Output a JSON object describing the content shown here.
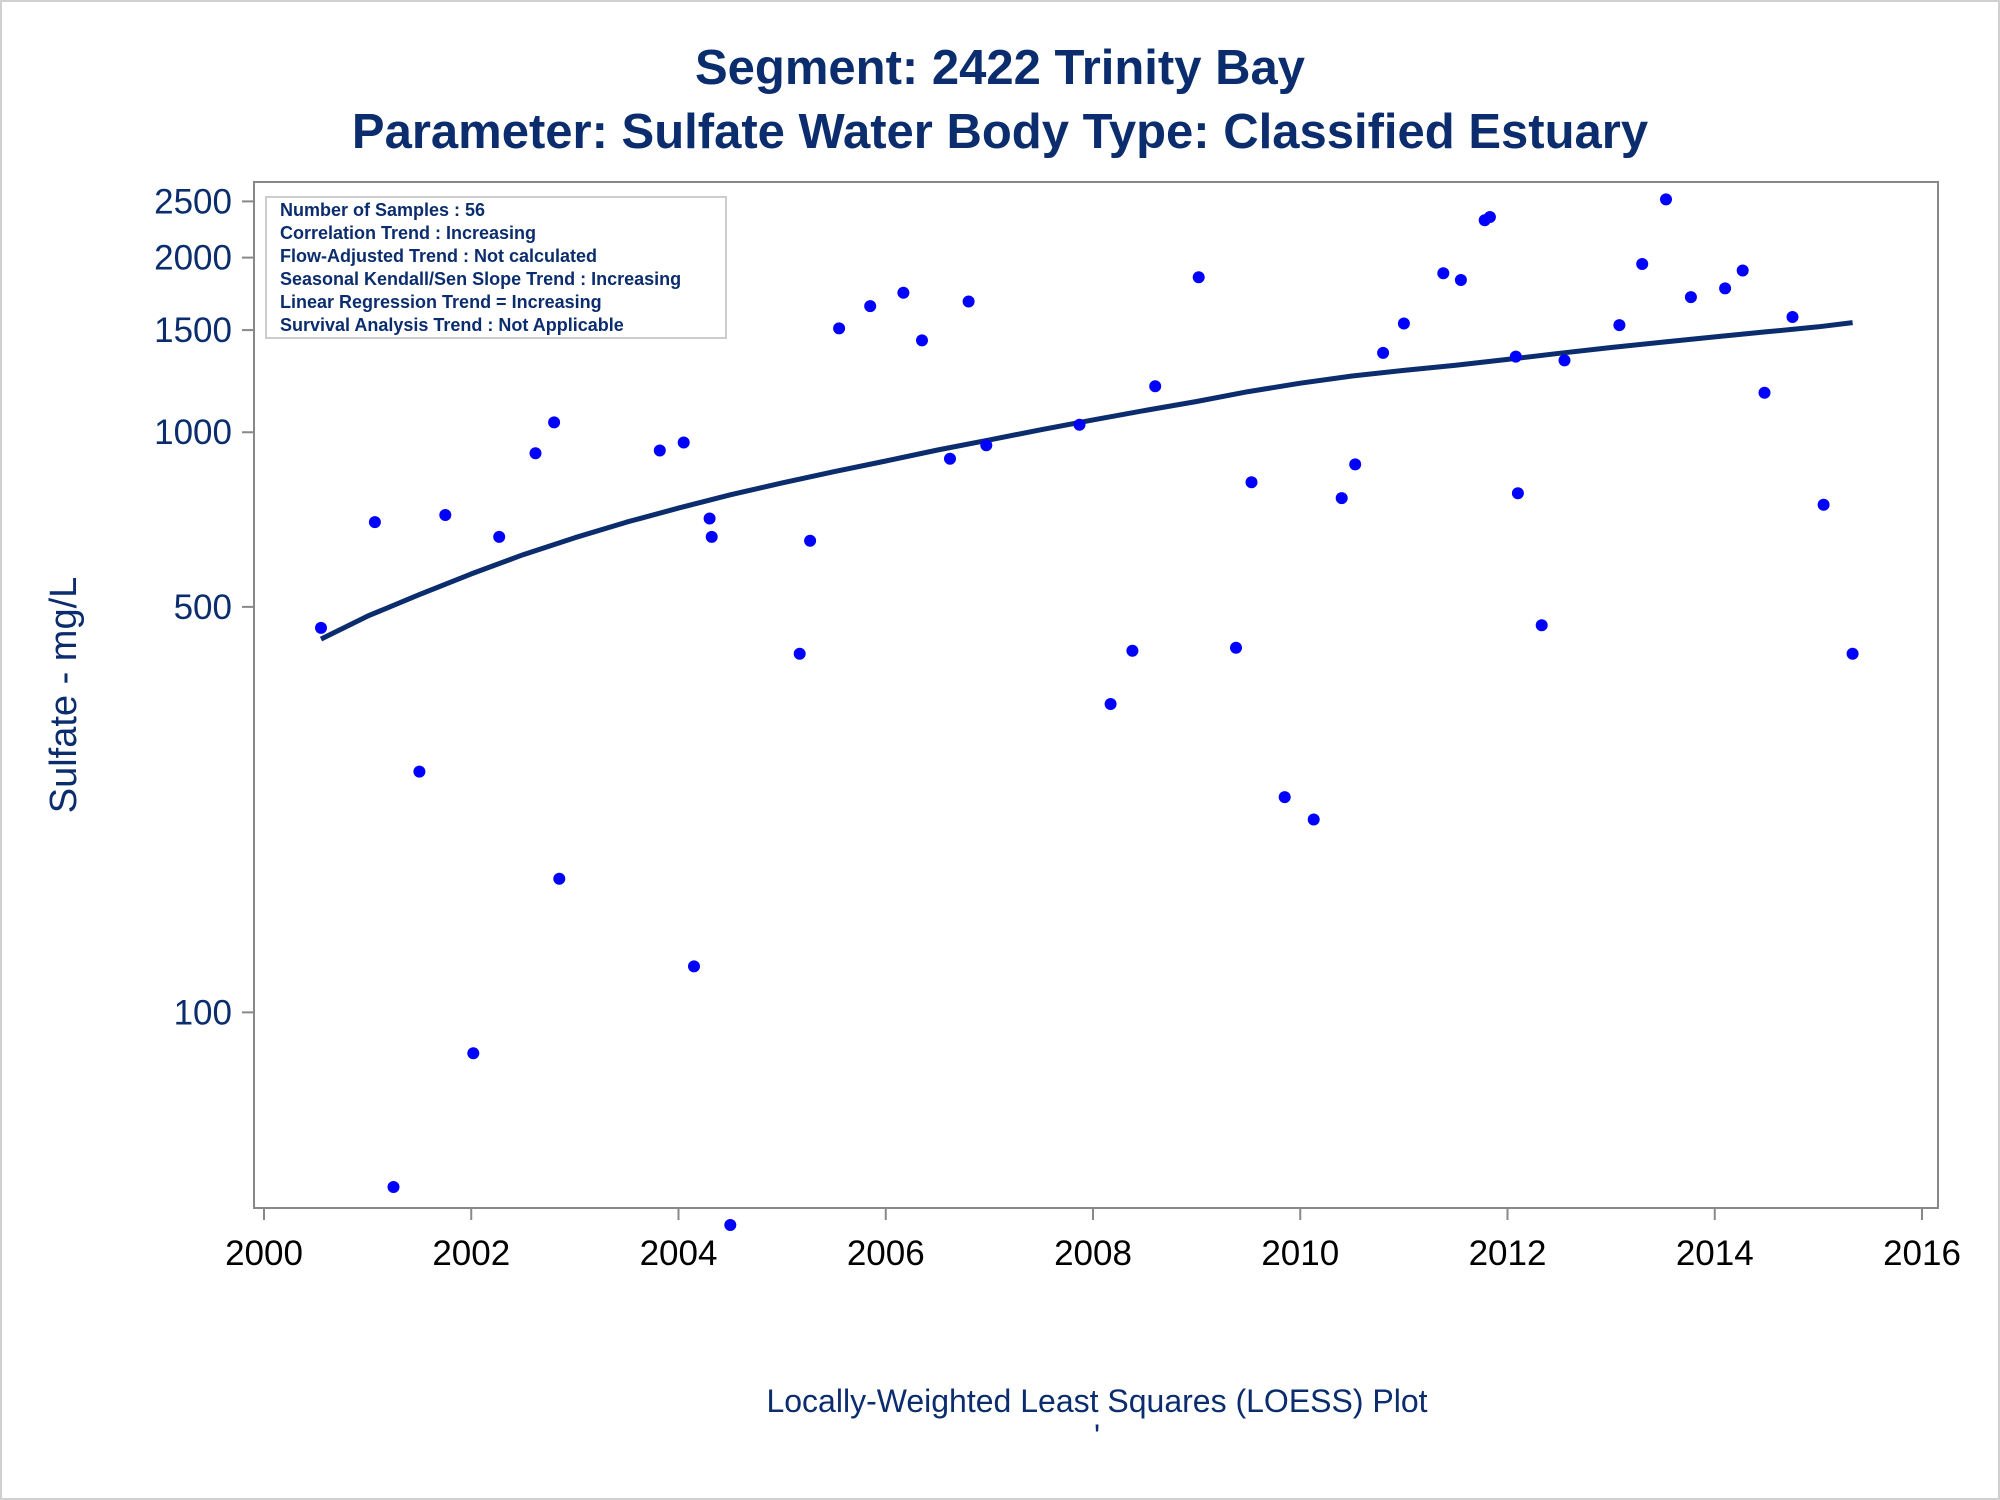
{
  "chart_data": {
    "type": "scatter",
    "title": "Segment: 2422  Trinity Bay",
    "subtitle": "Parameter: Sulfate   Water Body Type: Classified Estuary",
    "xlabel": "",
    "ylabel": "Sulfate - mg/L",
    "footnote": "Locally-Weighted Least Squares (LOESS) Plot",
    "footnote_mark": "'",
    "y_scale": "log",
    "xlim": [
      2000,
      2016
    ],
    "ylim": [
      46,
      2700
    ],
    "x_ticks": [
      2000,
      2002,
      2004,
      2006,
      2008,
      2010,
      2012,
      2014,
      2016
    ],
    "x_tick_labels": [
      "2000",
      "2002",
      "2004",
      "2006",
      "2008",
      "2010",
      "2012",
      "2014",
      "2016"
    ],
    "y_ticks": [
      100,
      500,
      1000,
      1500,
      2000,
      2500
    ],
    "y_tick_labels": [
      "100",
      "500",
      "1000",
      "1500",
      "2000",
      "2500"
    ],
    "grid": false,
    "colors": {
      "points": "#0000ff",
      "line": "#0b2d6e",
      "text": "#0b2d6e",
      "axis": "#888888"
    },
    "stats_box": {
      "position": "top-left",
      "lines": [
        "Number of Samples : 56",
        "Correlation Trend : Increasing",
        "Flow-Adjusted Trend : Not calculated",
        "Seasonal Kendall/Sen Slope Trend : Increasing",
        "Linear Regression Trend = Increasing",
        "Survival Analysis Trend : Not Applicable"
      ]
    },
    "series": [
      {
        "kind": "points",
        "x": [
          2000.55,
          2001.07,
          2001.25,
          2001.5,
          2001.75,
          2002.02,
          2002.27,
          2002.62,
          2002.8,
          2002.85,
          2003.82,
          2004.05,
          2004.15,
          2004.3,
          2004.32,
          2004.5,
          2005.17,
          2005.27,
          2005.55,
          2005.85,
          2006.17,
          2006.35,
          2006.62,
          2006.8,
          2006.97,
          2007.87,
          2008.17,
          2008.38,
          2008.6,
          2009.02,
          2009.38,
          2009.53,
          2009.85,
          2010.13,
          2010.4,
          2010.53,
          2010.8,
          2011.0,
          2011.38,
          2011.55,
          2011.78,
          2011.83,
          2012.08,
          2012.1,
          2012.33,
          2012.55,
          2013.08,
          2013.3,
          2013.53,
          2013.77,
          2014.1,
          2014.27,
          2014.48,
          2014.75,
          2015.05,
          2015.33
        ],
        "y": [
          460,
          700,
          50,
          260,
          720,
          85,
          660,
          920,
          1040,
          170,
          930,
          960,
          120,
          710,
          660,
          43,
          415,
          650,
          1510,
          1650,
          1740,
          1440,
          900,
          1680,
          950,
          1030,
          340,
          420,
          1200,
          1850,
          425,
          820,
          235,
          215,
          770,
          880,
          1370,
          1540,
          1880,
          1830,
          2320,
          2350,
          1350,
          785,
          465,
          1330,
          1530,
          1950,
          2520,
          1710,
          1770,
          1900,
          1170,
          1580,
          750,
          415
        ]
      },
      {
        "kind": "loess",
        "x": [
          2000.55,
          2001.0,
          2001.5,
          2002.0,
          2002.5,
          2003.0,
          2003.5,
          2004.0,
          2004.5,
          2005.0,
          2005.5,
          2006.0,
          2006.5,
          2007.0,
          2007.5,
          2008.0,
          2008.5,
          2009.0,
          2009.5,
          2010.0,
          2010.5,
          2011.0,
          2011.5,
          2012.0,
          2012.5,
          2013.0,
          2013.5,
          2014.0,
          2014.5,
          2015.0,
          2015.33
        ],
        "y": [
          440,
          482,
          525,
          570,
          615,
          658,
          700,
          740,
          780,
          818,
          855,
          892,
          932,
          970,
          1010,
          1050,
          1090,
          1130,
          1175,
          1215,
          1250,
          1278,
          1305,
          1335,
          1368,
          1400,
          1430,
          1460,
          1490,
          1520,
          1545
        ]
      }
    ]
  }
}
